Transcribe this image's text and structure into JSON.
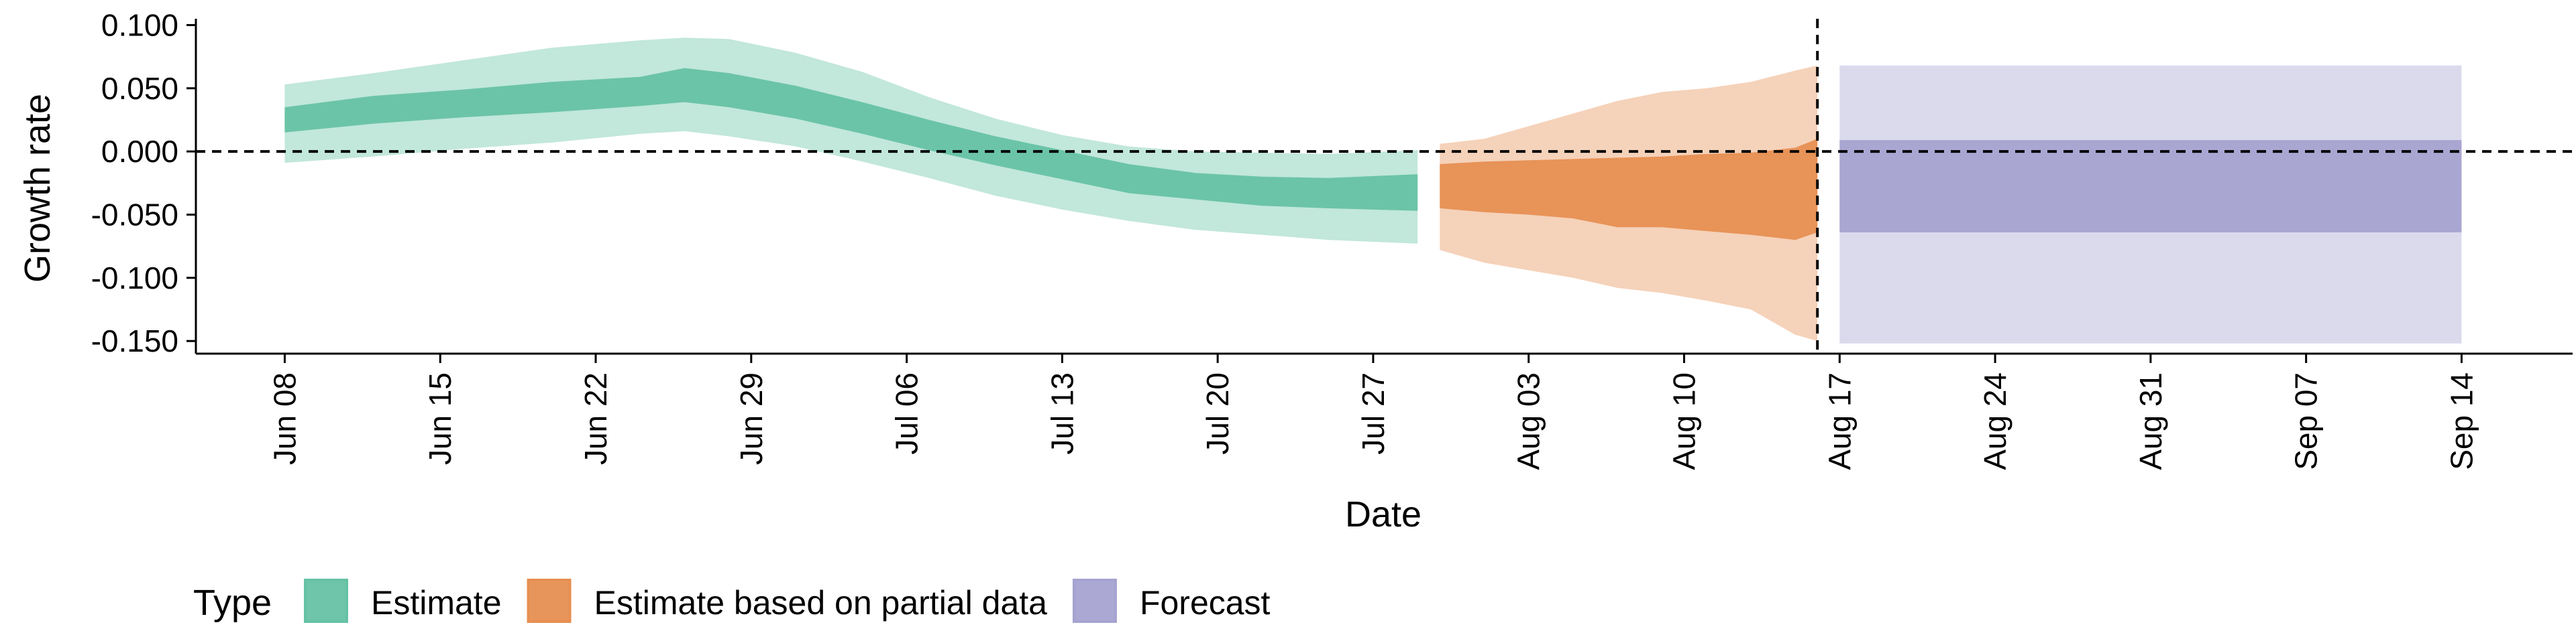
{
  "chart_data": {
    "type": "area",
    "title": "",
    "xlabel": "Date",
    "ylabel": "Growth rate",
    "ylim": [
      -0.16,
      0.105
    ],
    "yticks": [
      "0.100",
      "0.050",
      "0.000",
      "-0.050",
      "-0.100",
      "-0.150"
    ],
    "ytick_values": [
      0.1,
      0.05,
      0.0,
      -0.05,
      -0.1,
      -0.15
    ],
    "xlim": [
      "2020-06-04",
      "2020-09-19"
    ],
    "xticks": [
      "Jun 08",
      "Jun 15",
      "Jun 22",
      "Jun 29",
      "Jul 06",
      "Jul 13",
      "Jul 20",
      "Jul 27",
      "Aug 03",
      "Aug 10",
      "Aug 17",
      "Aug 24",
      "Aug 31",
      "Sep 07",
      "Sep 14"
    ],
    "xtick_dates": [
      "2020-06-08",
      "2020-06-15",
      "2020-06-22",
      "2020-06-29",
      "2020-07-06",
      "2020-07-13",
      "2020-07-20",
      "2020-07-27",
      "2020-08-03",
      "2020-08-10",
      "2020-08-17",
      "2020-08-24",
      "2020-08-31",
      "2020-09-07",
      "2020-09-14"
    ],
    "reference_lines": {
      "horizontal_y": 0.0,
      "vertical_date": "2020-08-16"
    },
    "grid": false,
    "legend": {
      "title": "Type",
      "placement": "bottom"
    },
    "series": [
      {
        "name": "Estimate",
        "color": "#66C2A5",
        "x": [
          "2020-06-08",
          "2020-06-12",
          "2020-06-16",
          "2020-06-20",
          "2020-06-24",
          "2020-06-26",
          "2020-06-28",
          "2020-07-01",
          "2020-07-04",
          "2020-07-07",
          "2020-07-10",
          "2020-07-13",
          "2020-07-16",
          "2020-07-19",
          "2020-07-22",
          "2020-07-25",
          "2020-07-29"
        ],
        "lower_90": [
          -0.009,
          -0.004,
          0.002,
          0.007,
          0.014,
          0.016,
          0.012,
          0.004,
          -0.008,
          -0.021,
          -0.035,
          -0.046,
          -0.055,
          -0.062,
          -0.066,
          -0.07,
          -0.073
        ],
        "lower_50": [
          0.015,
          0.022,
          0.027,
          0.031,
          0.036,
          0.039,
          0.035,
          0.026,
          0.014,
          0.001,
          -0.011,
          -0.022,
          -0.033,
          -0.038,
          -0.043,
          -0.045,
          -0.047
        ],
        "upper_50": [
          0.035,
          0.044,
          0.049,
          0.055,
          0.059,
          0.066,
          0.062,
          0.052,
          0.039,
          0.025,
          0.012,
          0.001,
          -0.01,
          -0.017,
          -0.02,
          -0.021,
          -0.018
        ],
        "upper_90": [
          0.053,
          0.062,
          0.072,
          0.082,
          0.088,
          0.09,
          0.089,
          0.078,
          0.063,
          0.043,
          0.026,
          0.013,
          0.004,
          0.0,
          -0.001,
          -0.002,
          0.001
        ]
      },
      {
        "name": "Estimate based on partial data",
        "color": "#E78F52",
        "x": [
          "2020-07-30",
          "2020-08-01",
          "2020-08-03",
          "2020-08-05",
          "2020-08-07",
          "2020-08-09",
          "2020-08-11",
          "2020-08-13",
          "2020-08-15",
          "2020-08-16"
        ],
        "lower_90": [
          -0.078,
          -0.088,
          -0.094,
          -0.1,
          -0.108,
          -0.112,
          -0.118,
          -0.125,
          -0.145,
          -0.15
        ],
        "lower_50": [
          -0.045,
          -0.048,
          -0.05,
          -0.053,
          -0.06,
          -0.06,
          -0.063,
          -0.066,
          -0.07,
          -0.064
        ],
        "upper_50": [
          -0.01,
          -0.008,
          -0.007,
          -0.006,
          -0.005,
          -0.004,
          -0.002,
          -0.001,
          0.003,
          0.01
        ],
        "upper_90": [
          0.006,
          0.01,
          0.02,
          0.03,
          0.04,
          0.047,
          0.05,
          0.055,
          0.064,
          0.068
        ]
      },
      {
        "name": "Forecast",
        "color": "#A6A3D1",
        "x": [
          "2020-08-17",
          "2020-09-14"
        ],
        "lower_90": [
          -0.152,
          -0.152
        ],
        "lower_50": [
          -0.064,
          -0.064
        ],
        "upper_50": [
          0.009,
          0.009
        ],
        "upper_90": [
          0.068,
          0.068
        ]
      }
    ]
  }
}
